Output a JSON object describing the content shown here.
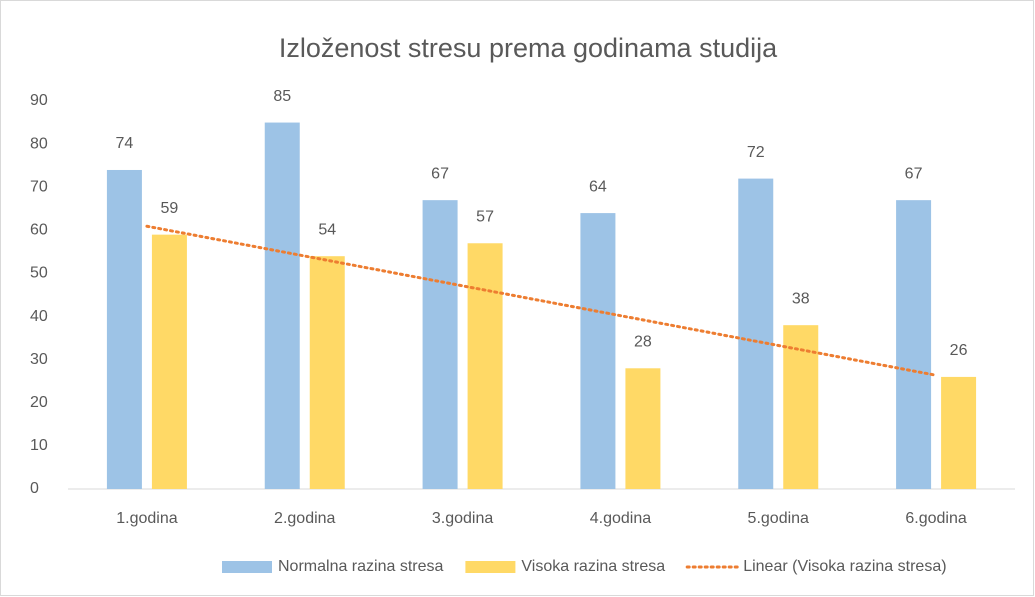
{
  "chart_data": {
    "type": "bar",
    "title": "Izloženost stresu prema godinama studija",
    "categories": [
      "1.godina",
      "2.godina",
      "3.godina",
      "4.godina",
      "5.godina",
      "6.godina"
    ],
    "series": [
      {
        "name": "Normalna razina stresa",
        "color": "#9dc3e6",
        "values": [
          74,
          85,
          67,
          64,
          72,
          67
        ]
      },
      {
        "name": "Visoka razina stresa",
        "color": "#ffd966",
        "values": [
          59,
          54,
          57,
          28,
          38,
          26
        ]
      }
    ],
    "trendline": {
      "series": 1,
      "type": "linear",
      "name": "Linear (Visoka razina stresa)",
      "color": "#ed7d31"
    },
    "ylim": [
      0,
      90
    ],
    "yticks": [
      0,
      10,
      20,
      30,
      40,
      50,
      60,
      70,
      80,
      90
    ],
    "grid": false,
    "legend": "bottom"
  }
}
